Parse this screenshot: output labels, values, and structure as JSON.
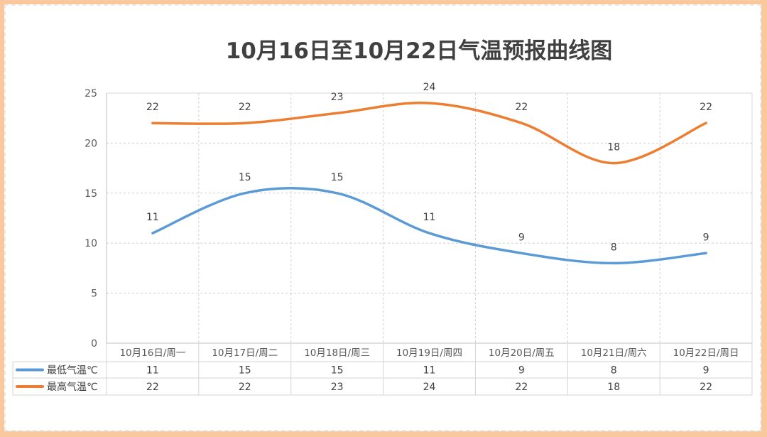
{
  "chart_data": {
    "type": "line",
    "title": "10月16日至10月22日气温预报曲线图",
    "categories": [
      "10月16日/周一",
      "10月17日/周二",
      "10月18日/周三",
      "10月19日/周四",
      "10月20日/周五",
      "10月21日/周六",
      "10月22日/周日"
    ],
    "series": [
      {
        "name": "最低气温℃",
        "values": [
          11,
          15,
          15,
          11,
          9,
          8,
          9
        ],
        "color": "#5b9bd5"
      },
      {
        "name": "最高气温℃",
        "values": [
          22,
          22,
          23,
          24,
          22,
          18,
          22
        ],
        "color": "#ed7d31"
      }
    ],
    "ylim": [
      0,
      25
    ],
    "yticks": [
      "0",
      "5",
      "10",
      "15",
      "20",
      "25"
    ],
    "grid": true,
    "smooth": true,
    "data_labels": true,
    "legend": "data-table-bottom"
  }
}
